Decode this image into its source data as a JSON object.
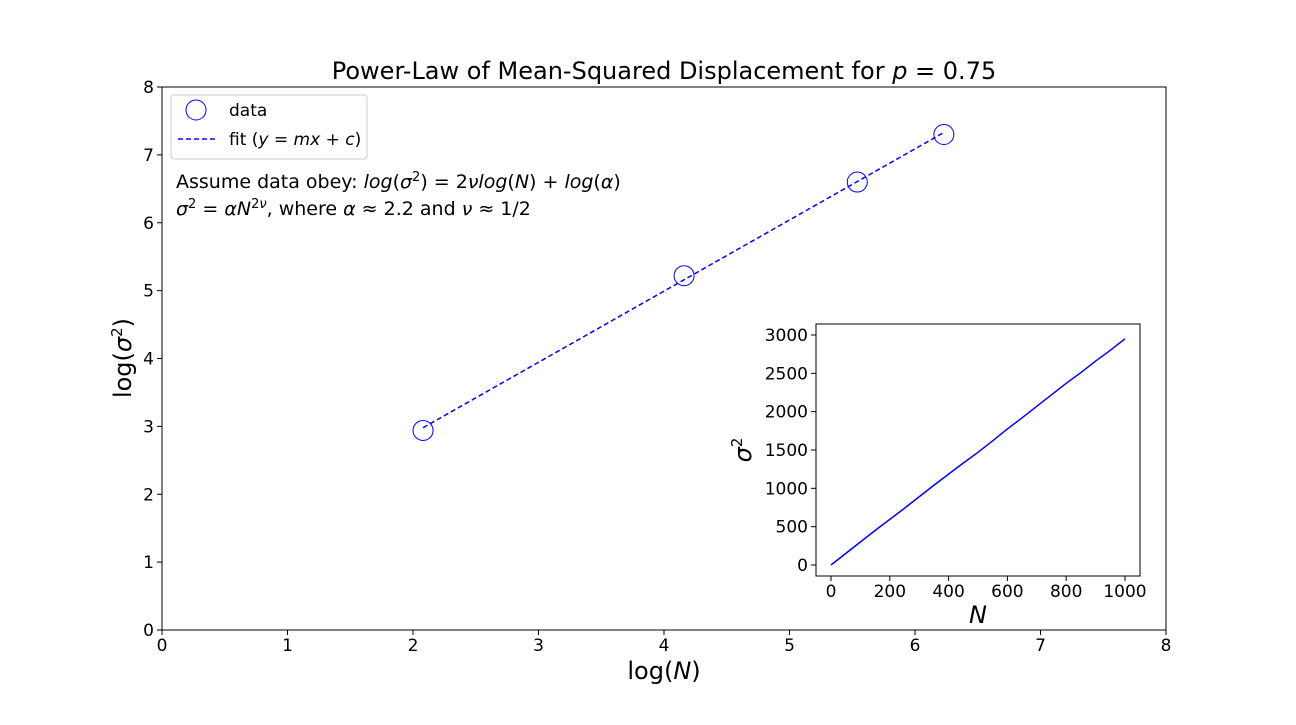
{
  "chart_data": [
    {
      "type": "scatter",
      "title": "Power-Law of Mean-Squared Displacement for p = 0.75",
      "xlabel": "log(N)",
      "ylabel": "log(σ²)",
      "xlim": [
        0,
        8
      ],
      "ylim": [
        0,
        8
      ],
      "xticks": [
        0,
        1,
        2,
        3,
        4,
        5,
        6,
        7,
        8
      ],
      "yticks": [
        0,
        1,
        2,
        3,
        4,
        5,
        6,
        7,
        8
      ],
      "grid": false,
      "legend_position": "top-left",
      "series": [
        {
          "name": "data",
          "marker": "open-circle",
          "color": "#0000ff",
          "x": [
            2.08,
            4.16,
            5.54,
            6.23
          ],
          "y": [
            2.94,
            5.22,
            6.6,
            7.3
          ]
        },
        {
          "name": "fit (y = mx + c)",
          "style": "dashed-line",
          "color": "#0000ff",
          "x": [
            2.08,
            6.23
          ],
          "y": [
            2.98,
            7.33
          ]
        }
      ],
      "annotations": [
        "Assume data obey: log(σ²) = 2νlog(N) + log(α)",
        "σ² = αN²ᵛ, where α ≈ 2.2 and ν ≈ 1/2"
      ]
    },
    {
      "type": "line",
      "position": "inset",
      "xlabel": "N",
      "ylabel": "σ²",
      "xlim": [
        0,
        1000
      ],
      "ylim": [
        0,
        3000
      ],
      "xticks": [
        0,
        200,
        400,
        600,
        800,
        1000
      ],
      "yticks": [
        0,
        500,
        1000,
        1500,
        2000,
        2500,
        3000
      ],
      "series": [
        {
          "color": "#0000ff",
          "x": [
            0,
            50,
            100,
            150,
            200,
            250,
            300,
            350,
            400,
            450,
            500,
            550,
            600,
            650,
            700,
            750,
            800,
            850,
            900,
            950,
            1000
          ],
          "y": [
            0,
            150,
            300,
            450,
            595,
            740,
            890,
            1040,
            1185,
            1330,
            1470,
            1620,
            1775,
            1920,
            2070,
            2220,
            2370,
            2510,
            2660,
            2800,
            2950
          ]
        }
      ]
    }
  ]
}
